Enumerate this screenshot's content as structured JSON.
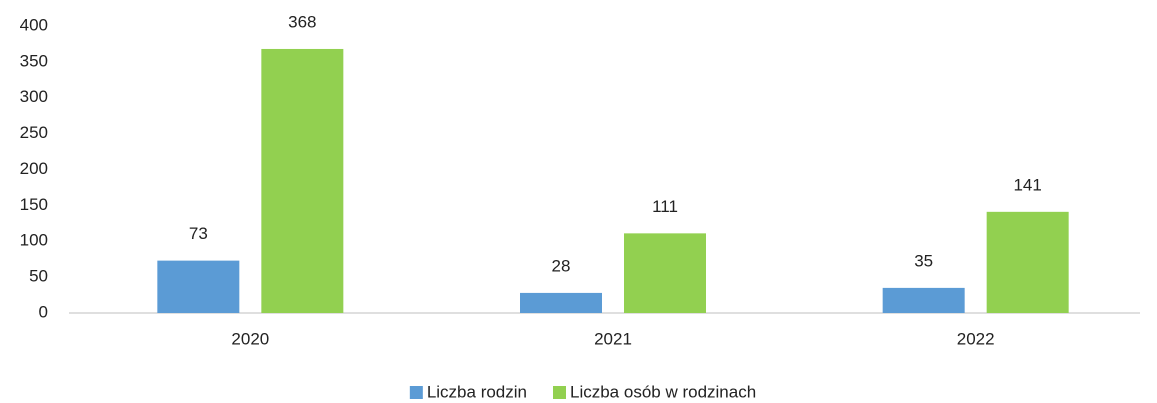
{
  "chart_data": {
    "type": "bar",
    "categories": [
      "2020",
      "2021",
      "2022"
    ],
    "series": [
      {
        "name": "Liczba rodzin",
        "color": "#5b9bd5",
        "values": [
          73,
          28,
          35
        ]
      },
      {
        "name": "Liczba osób w rodzinach",
        "color": "#92d050",
        "values": [
          368,
          111,
          141
        ]
      }
    ],
    "ylim": [
      0,
      400
    ],
    "yticks": [
      0,
      50,
      100,
      150,
      200,
      250,
      300,
      350,
      400
    ],
    "grid": false,
    "legend": "bottom",
    "data_labels": true
  }
}
